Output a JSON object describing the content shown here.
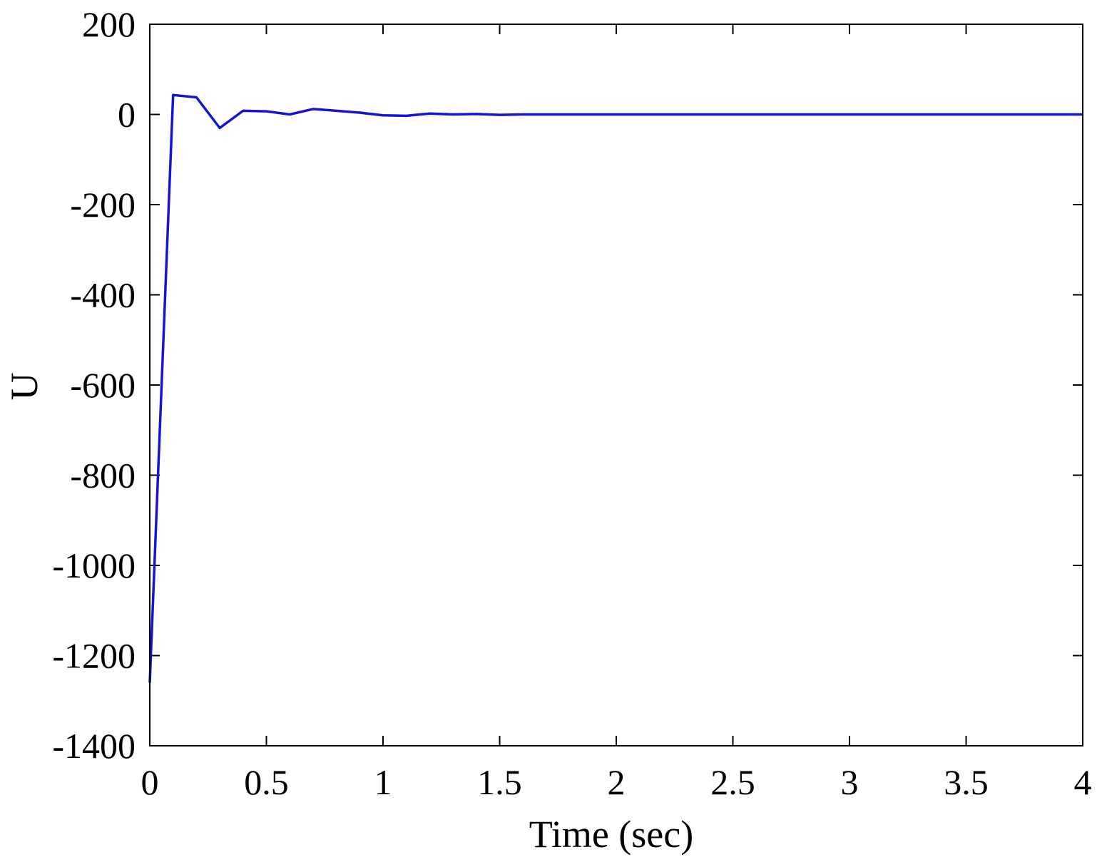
{
  "chart_data": {
    "type": "line",
    "title": "",
    "xlabel": "Time (sec)",
    "ylabel": "U",
    "xlim": [
      0,
      4
    ],
    "ylim": [
      -1400,
      200
    ],
    "xticks": [
      0,
      0.5,
      1,
      1.5,
      2,
      2.5,
      3,
      3.5,
      4
    ],
    "xtick_labels": [
      "0",
      "0.5",
      "1",
      "1.5",
      "2",
      "2.5",
      "3",
      "3.5",
      "4"
    ],
    "yticks": [
      -1400,
      -1200,
      -1000,
      -800,
      -600,
      -400,
      -200,
      0,
      200
    ],
    "ytick_labels": [
      "-1400",
      "-1200",
      "-1000",
      "-800",
      "-600",
      "-400",
      "-200",
      "0",
      "200"
    ],
    "grid": false,
    "box": true,
    "series": [
      {
        "color": "#1414d2",
        "x": [
          0,
          0.1,
          0.2,
          0.3,
          0.4,
          0.5,
          0.6,
          0.7,
          0.8,
          0.9,
          1.0,
          1.1,
          1.2,
          1.3,
          1.4,
          1.5,
          1.6,
          1.7,
          1.8,
          2.0,
          2.5,
          3.0,
          3.5,
          4.0
        ],
        "y": [
          -1260,
          43,
          38,
          -30,
          8,
          7,
          0,
          12,
          8,
          4,
          -2,
          -3,
          2,
          0,
          1,
          -1,
          0,
          0,
          0,
          0,
          0,
          0,
          0,
          0
        ]
      }
    ]
  }
}
